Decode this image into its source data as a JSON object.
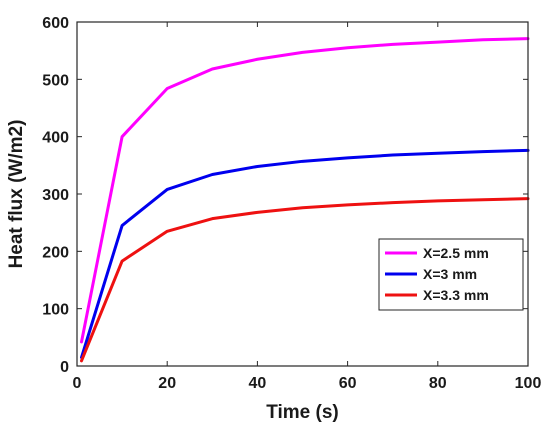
{
  "chart_data": {
    "type": "line",
    "title": "",
    "xlabel": "Time (s)",
    "ylabel": "Heat flux (W/m2)",
    "xlim": [
      0,
      100
    ],
    "ylim": [
      0,
      600
    ],
    "xticks": [
      0,
      20,
      40,
      60,
      80,
      100
    ],
    "yticks": [
      0,
      100,
      200,
      300,
      400,
      500,
      600
    ],
    "grid": false,
    "legend_position": "bottom-right",
    "x": [
      1,
      10,
      20,
      30,
      40,
      50,
      60,
      70,
      80,
      90,
      100
    ],
    "series": [
      {
        "name": "X=2.5 mm",
        "color": "#ff00ff",
        "values": [
          42,
          400,
          484,
          518,
          535,
          547,
          555,
          561,
          565,
          569,
          571
        ]
      },
      {
        "name": "X=3 mm",
        "color": "#0000ee",
        "values": [
          15,
          245,
          308,
          334,
          348,
          357,
          363,
          368,
          371,
          374,
          376
        ]
      },
      {
        "name": "X=3.3 mm",
        "color": "#ee1111",
        "values": [
          9,
          183,
          235,
          257,
          268,
          276,
          281,
          285,
          288,
          290,
          292
        ]
      }
    ]
  }
}
